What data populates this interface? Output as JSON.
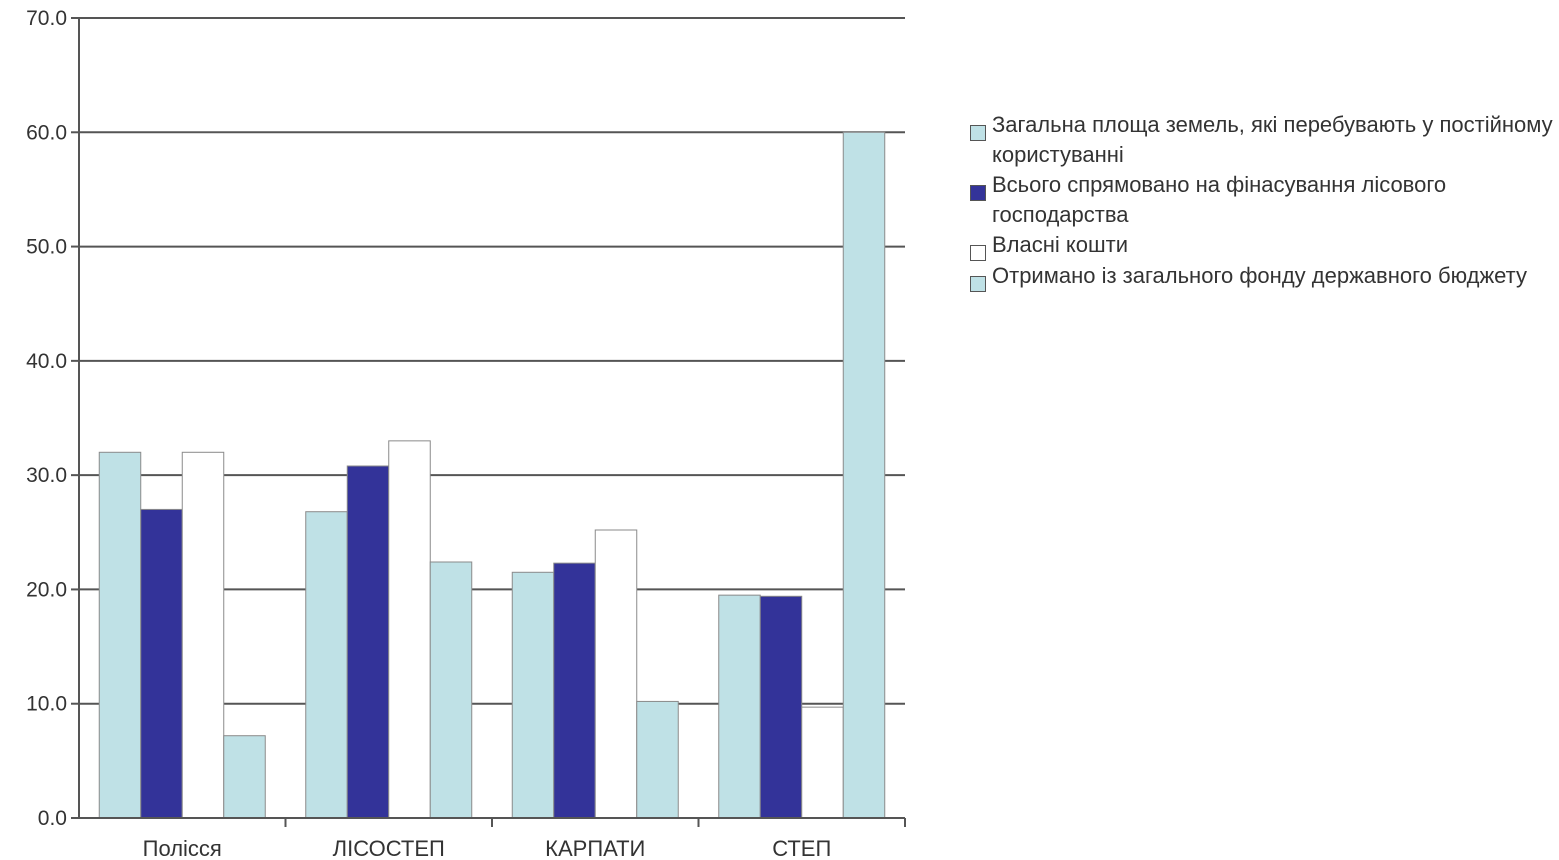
{
  "chart_data": {
    "type": "bar",
    "categories": [
      "Полісся",
      "ЛІСОСТЕП",
      "КАРПАТИ",
      "СТЕП"
    ],
    "series": [
      {
        "name": "Загальна площа земель, які перебувають у постійному користуванні",
        "color": "#bfe1e6",
        "values": [
          32.0,
          26.8,
          21.5,
          19.5
        ]
      },
      {
        "name": "Всього спрямовано на фінасування лісового господарства",
        "color": "#333399",
        "values": [
          27.0,
          30.8,
          22.3,
          19.4
        ]
      },
      {
        "name": "Власні кошти",
        "color": "#ffffff",
        "values": [
          32.0,
          33.0,
          25.2,
          9.7
        ]
      },
      {
        "name": "Отримано із загального фонду державного бюджету",
        "color": "#bfe1e6",
        "values": [
          7.2,
          22.4,
          10.2,
          60.0
        ]
      }
    ],
    "y_ticks": [
      "0.0",
      "10.0",
      "20.0",
      "30.0",
      "40.0",
      "50.0",
      "60.0",
      "70.0"
    ],
    "ylim": [
      0,
      70
    ],
    "grid": true,
    "legend_position": "right"
  }
}
